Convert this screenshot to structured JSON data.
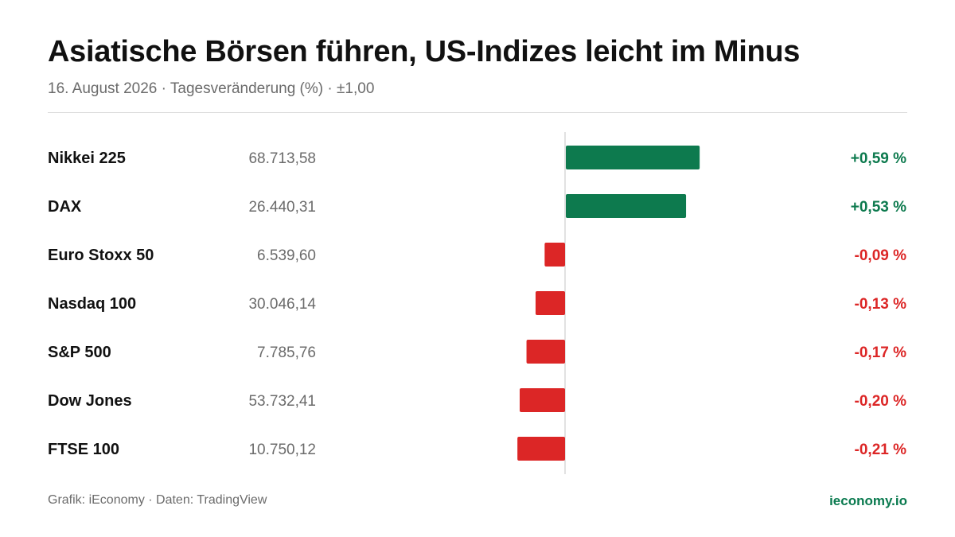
{
  "header": {
    "title": "Asiatische Börsen führen, US-Indizes leicht im Minus",
    "subtitle": "16. August 2026 · Tagesveränderung (%) · ±1,00"
  },
  "footer": {
    "source": "Grafik: iEconomy · Daten: TradingView",
    "brand": "ieconomy.io"
  },
  "colors": {
    "positive": "#0d7a4e",
    "negative": "#dc2626",
    "axis": "#d9d9d9"
  },
  "chart_data": {
    "type": "bar",
    "orientation": "horizontal",
    "xlim": [
      -1,
      1
    ],
    "categories": [
      "Nikkei 225",
      "DAX",
      "Euro Stoxx 50",
      "Nasdaq 100",
      "S&P 500",
      "Dow Jones",
      "FTSE 100"
    ],
    "index_levels": [
      "68.713,58",
      "26.440,31",
      "6.539,60",
      "30.046,14",
      "7.785,76",
      "53.732,41",
      "10.750,12"
    ],
    "values": [
      0.59,
      0.53,
      -0.09,
      -0.13,
      -0.17,
      -0.2,
      -0.21
    ],
    "value_labels": [
      "+0,59 %",
      "+0,53 %",
      "-0,09 %",
      "-0,13 %",
      "-0,17 %",
      "-0,20 %",
      "-0,21 %"
    ]
  }
}
